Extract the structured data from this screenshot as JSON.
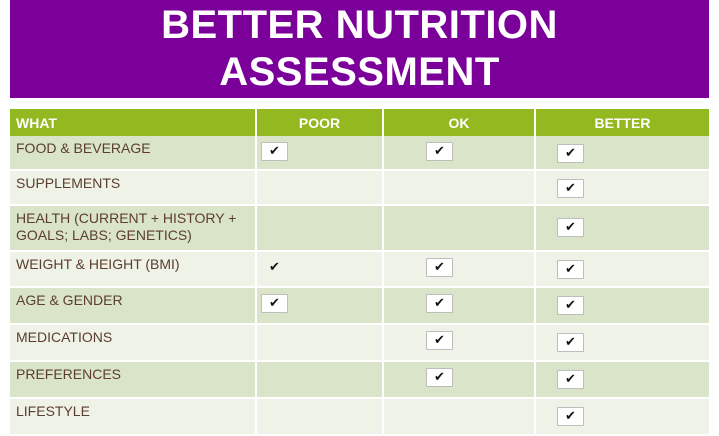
{
  "title": {
    "line1": "BETTER NUTRITION",
    "line2": "ASSESSMENT"
  },
  "colors": {
    "title_background": "#7b0099",
    "header_background": "#94b81f",
    "row_dark": "#d9e4c9",
    "row_light": "#eef2e7",
    "label_text": "#5c3d2e"
  },
  "check_icon": "check-mark-icon",
  "check_glyph": "✔",
  "table": {
    "headers": [
      "WHAT",
      "POOR",
      "OK",
      "BETTER"
    ],
    "rows": [
      {
        "label": "FOOD & BEVERAGE",
        "poor": true,
        "ok": true,
        "better": true
      },
      {
        "label": "SUPPLEMENTS",
        "poor": false,
        "ok": false,
        "better": true
      },
      {
        "label": "HEALTH (CURRENT + HISTORY + GOALS; LABS; GENETICS)",
        "poor": false,
        "ok": false,
        "better": true
      },
      {
        "label": "WEIGHT & HEIGHT (BMI)",
        "poor": true,
        "ok": true,
        "better": true
      },
      {
        "label": "AGE & GENDER",
        "poor": true,
        "ok": true,
        "better": true
      },
      {
        "label": "MEDICATIONS",
        "poor": false,
        "ok": true,
        "better": true
      },
      {
        "label": "PREFERENCES",
        "poor": false,
        "ok": true,
        "better": true
      },
      {
        "label": "LIFESTYLE",
        "poor": false,
        "ok": false,
        "better": true
      }
    ]
  }
}
